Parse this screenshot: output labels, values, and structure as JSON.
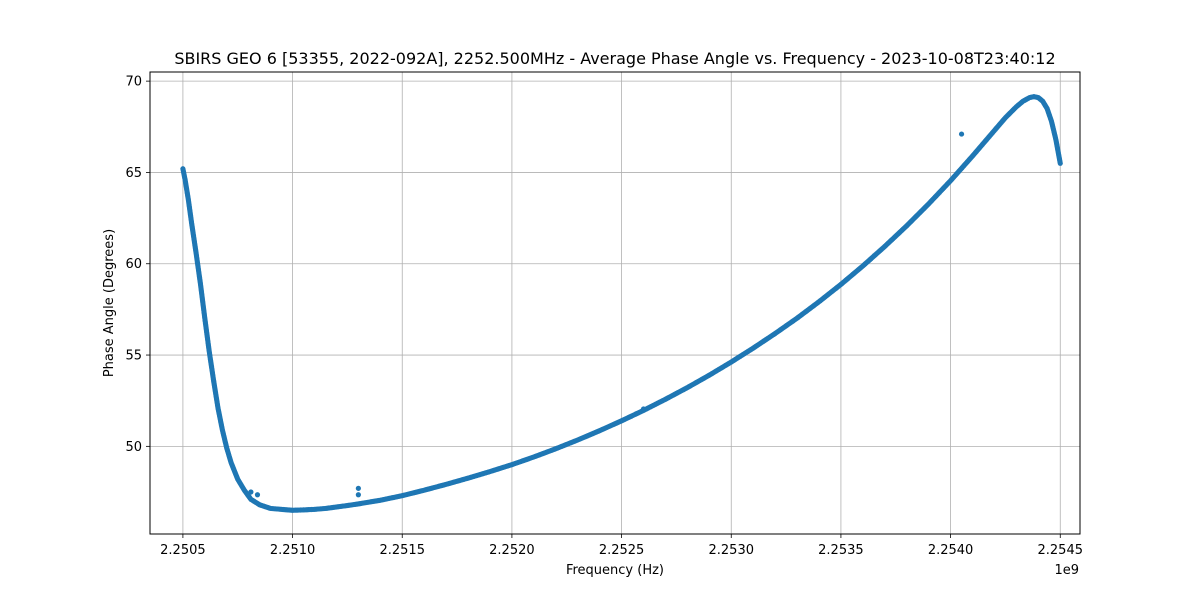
{
  "chart_data": {
    "type": "scatter",
    "title": "SBIRS GEO 6 [53355, 2022-092A], 2252.500MHz - Average Phase Angle vs. Frequency - 2023-10-08T23:40:12",
    "xlabel": "Frequency (Hz)",
    "ylabel": "Phase Angle (Degrees)",
    "x_offset_label": "1e9",
    "x_scale": 1000000000,
    "xlim": [
      2250350000,
      2254590000
    ],
    "ylim": [
      45.2,
      70.5
    ],
    "xticks": [
      2250500000,
      2251000000,
      2251500000,
      2252000000,
      2252500000,
      2253000000,
      2253500000,
      2254000000,
      2254500000
    ],
    "xtick_labels": [
      "2.2505",
      "2.2510",
      "2.2515",
      "2.2520",
      "2.2525",
      "2.2530",
      "2.2535",
      "2.2540",
      "2.2545"
    ],
    "yticks": [
      50,
      55,
      60,
      65,
      70
    ],
    "ytick_labels": [
      "50",
      "55",
      "60",
      "65",
      "70"
    ],
    "grid": true,
    "marker_color": "#1f77b4",
    "series": [
      {
        "x": [
          2250500000,
          2250510000,
          2250525000,
          2250540000,
          2250560000,
          2250580000,
          2250600000,
          2250620000,
          2250640000,
          2250660000,
          2250680000,
          2250700000,
          2250720000,
          2250750000,
          2250780000,
          2250810000,
          2250850000,
          2250900000,
          2250950000,
          2251000000,
          2251050000,
          2251100000,
          2251150000,
          2251200000,
          2251250000,
          2251300000,
          2251400000,
          2251500000,
          2251600000,
          2251700000,
          2251800000,
          2251900000,
          2252000000,
          2252100000,
          2252200000,
          2252300000,
          2252400000,
          2252500000,
          2252600000,
          2252700000,
          2252800000,
          2252900000,
          2253000000,
          2253100000,
          2253200000,
          2253300000,
          2253400000,
          2253500000,
          2253600000,
          2253700000,
          2253800000,
          2253900000,
          2254000000,
          2254100000,
          2254150000,
          2254200000,
          2254250000,
          2254300000,
          2254330000,
          2254360000,
          2254380000,
          2254400000,
          2254420000,
          2254440000,
          2254460000,
          2254480000,
          2254500000
        ],
        "y": [
          65.2,
          64.6,
          63.5,
          62.2,
          60.6,
          58.9,
          57.0,
          55.2,
          53.6,
          52.1,
          50.9,
          49.9,
          49.1,
          48.2,
          47.6,
          47.1,
          46.8,
          46.6,
          46.55,
          46.5,
          46.52,
          46.55,
          46.6,
          46.68,
          46.76,
          46.85,
          47.05,
          47.3,
          47.6,
          47.92,
          48.26,
          48.62,
          49.0,
          49.42,
          49.87,
          50.35,
          50.86,
          51.4,
          51.97,
          52.58,
          53.22,
          53.9,
          54.62,
          55.38,
          56.18,
          57.02,
          57.92,
          58.87,
          59.88,
          60.95,
          62.08,
          63.28,
          64.55,
          65.9,
          66.6,
          67.3,
          68.0,
          68.6,
          68.9,
          69.1,
          69.15,
          69.1,
          68.9,
          68.5,
          67.8,
          66.8,
          65.5
        ]
      }
    ],
    "outliers": {
      "x": [
        2250810000,
        2250840000,
        2251300000,
        2251300000,
        2252600000,
        2254050000
      ],
      "y": [
        47.5,
        47.35,
        47.7,
        47.35,
        52.05,
        67.1
      ]
    }
  }
}
